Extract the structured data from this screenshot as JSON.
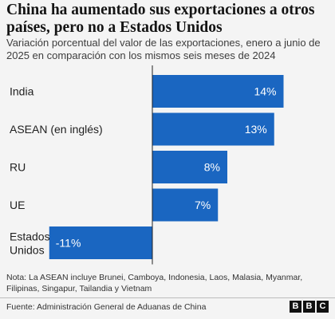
{
  "header": {
    "title": "China ha aumentado sus exportaciones a otros países, pero no a Estados Unidos",
    "subtitle": "Variación porcentual del valor de las exportaciones, enero a junio de 2025 en comparación con los mismos seis meses de 2024"
  },
  "chart_data": {
    "type": "bar",
    "orientation": "horizontal",
    "title": "China ha aumentado sus exportaciones a otros países, pero no a Estados Unidos",
    "subtitle": "Variación porcentual del valor de las exportaciones, enero a junio de 2025 en comparación con los mismos seis meses de 2024",
    "categories": [
      "India",
      "ASEAN (en inglés)",
      "RU",
      "UE",
      "Estados Unidos"
    ],
    "category_lines": [
      [
        "India"
      ],
      [
        "ASEAN (en inglés)"
      ],
      [
        "RU"
      ],
      [
        "UE"
      ],
      [
        "Estados",
        "Unidos"
      ]
    ],
    "values": [
      14,
      13,
      8,
      7,
      -11
    ],
    "value_labels": [
      "14%",
      "13%",
      "8%",
      "7%",
      "-11%"
    ],
    "unit": "%",
    "xlim": [
      -12,
      14.6
    ],
    "bar_color": "#1a66c1",
    "grid": false,
    "legend": "none"
  },
  "footer": {
    "note": "Nota: La ASEAN incluye Brunei, Camboya, Indonesia, Laos, Malasia, Myanmar, Filipinas, Singapur, Tailandia y Vietnam",
    "source": "Fuente: Administración General de Aduanas de China",
    "logo_letters": [
      "B",
      "B",
      "C"
    ]
  }
}
